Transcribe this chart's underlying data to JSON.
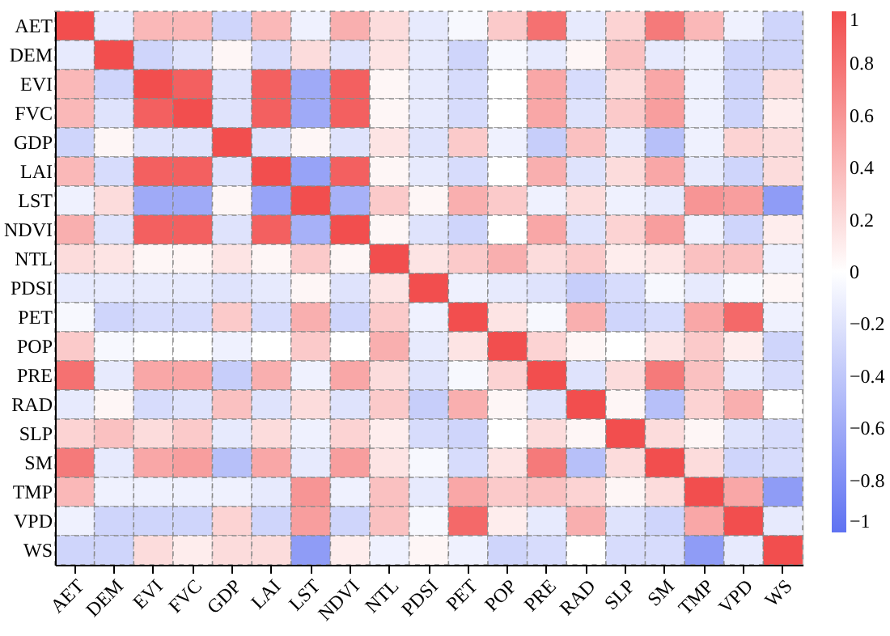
{
  "chart_data": {
    "type": "heatmap",
    "categories": [
      "AET",
      "DEM",
      "EVI",
      "FVC",
      "GDP",
      "LAI",
      "LST",
      "NDVI",
      "NTL",
      "PDSI",
      "PET",
      "POP",
      "PRE",
      "RAD",
      "SLP",
      "SM",
      "TMP",
      "VPD",
      "WS"
    ],
    "y_categories": [
      "AET",
      "DEM",
      "EVI",
      "FVC",
      "GDP",
      "LAI",
      "LST",
      "NDVI",
      "NTL",
      "PDSI",
      "PET",
      "POP",
      "PRE",
      "RAD",
      "SLP",
      "SM",
      "TMP",
      "VPD",
      "WS"
    ],
    "cells": [
      [
        1,
        -0.15,
        0.4,
        0.4,
        -0.3,
        0.4,
        -0.1,
        0.45,
        0.2,
        -0.15,
        -0.05,
        0.3,
        0.8,
        -0.15,
        0.25,
        0.75,
        0.4,
        -0.1,
        -0.3
      ],
      [
        -0.15,
        1,
        -0.3,
        -0.2,
        0.05,
        -0.25,
        0.2,
        -0.2,
        0.15,
        -0.15,
        -0.3,
        -0.05,
        -0.15,
        0.05,
        0.35,
        -0.15,
        -0.1,
        -0.3,
        -0.3
      ],
      [
        0.4,
        -0.3,
        1,
        0.9,
        -0.2,
        0.9,
        -0.6,
        0.9,
        0.05,
        -0.15,
        -0.25,
        0,
        0.5,
        -0.25,
        0.2,
        0.5,
        -0.1,
        -0.3,
        0.2
      ],
      [
        0.4,
        -0.2,
        0.9,
        1,
        -0.2,
        0.9,
        -0.6,
        0.9,
        0.05,
        -0.15,
        -0.25,
        0,
        0.5,
        -0.2,
        0.3,
        0.55,
        -0.1,
        -0.3,
        0.1
      ],
      [
        -0.3,
        0.05,
        -0.2,
        -0.2,
        1,
        -0.2,
        0.05,
        -0.2,
        0.15,
        -0.2,
        0.3,
        -0.1,
        -0.35,
        0.35,
        -0.15,
        -0.45,
        -0.1,
        0.25,
        0.2
      ],
      [
        0.4,
        -0.25,
        0.9,
        0.9,
        -0.2,
        1,
        -0.65,
        0.9,
        0.05,
        -0.15,
        -0.25,
        0,
        0.45,
        -0.2,
        0.2,
        0.5,
        -0.15,
        -0.3,
        0.2
      ],
      [
        -0.1,
        0.2,
        -0.6,
        -0.6,
        0.05,
        -0.65,
        1,
        -0.55,
        0.3,
        0.05,
        0.45,
        0.3,
        -0.1,
        0.2,
        -0.1,
        -0.15,
        0.6,
        0.55,
        -0.7
      ],
      [
        0.45,
        -0.2,
        0.9,
        0.9,
        -0.2,
        0.9,
        -0.55,
        1,
        0.05,
        -0.2,
        -0.3,
        0,
        0.5,
        -0.2,
        0.25,
        0.55,
        -0.1,
        -0.3,
        0.1
      ],
      [
        0.2,
        0.15,
        0.05,
        0.05,
        0.15,
        0.05,
        0.3,
        0.05,
        1,
        0.15,
        0.3,
        0.45,
        0.2,
        0.3,
        0.1,
        0.15,
        0.35,
        0.35,
        -0.1
      ],
      [
        -0.15,
        -0.15,
        -0.15,
        -0.15,
        -0.2,
        -0.15,
        0.05,
        -0.2,
        0.15,
        1,
        -0.1,
        -0.15,
        -0.2,
        -0.35,
        -0.25,
        -0.05,
        -0.15,
        -0.05,
        0.05
      ],
      [
        -0.05,
        -0.3,
        -0.25,
        -0.25,
        0.3,
        -0.25,
        0.45,
        -0.3,
        0.3,
        -0.1,
        1,
        0.15,
        -0.05,
        0.45,
        -0.3,
        -0.25,
        0.5,
        0.85,
        -0.1
      ],
      [
        0.3,
        -0.05,
        0,
        0,
        -0.1,
        0,
        0.3,
        0,
        0.45,
        -0.15,
        0.15,
        1,
        0.25,
        0.05,
        0,
        0.15,
        0.3,
        0.1,
        -0.3
      ],
      [
        0.8,
        -0.15,
        0.5,
        0.5,
        -0.35,
        0.45,
        -0.1,
        0.5,
        0.2,
        -0.2,
        -0.05,
        0.25,
        1,
        -0.2,
        0.2,
        0.75,
        0.35,
        -0.15,
        -0.25
      ],
      [
        -0.15,
        0.05,
        -0.25,
        -0.2,
        0.35,
        -0.2,
        0.2,
        -0.2,
        0.3,
        -0.35,
        0.45,
        0.05,
        -0.2,
        1,
        0.05,
        -0.45,
        0.25,
        0.45,
        0
      ],
      [
        0.25,
        0.35,
        0.2,
        0.3,
        -0.15,
        0.2,
        -0.1,
        0.25,
        0.1,
        -0.25,
        -0.3,
        0,
        0.2,
        0.05,
        1,
        0.2,
        0.05,
        -0.2,
        -0.25
      ],
      [
        0.75,
        -0.15,
        0.5,
        0.55,
        -0.45,
        0.5,
        -0.15,
        0.55,
        0.15,
        -0.05,
        -0.25,
        0.15,
        0.75,
        -0.45,
        0.2,
        1,
        0.2,
        -0.3,
        -0.25
      ],
      [
        0.4,
        -0.1,
        -0.1,
        -0.1,
        -0.1,
        -0.15,
        0.6,
        -0.1,
        0.35,
        -0.15,
        0.5,
        0.3,
        0.35,
        0.25,
        0.05,
        0.2,
        1,
        0.5,
        -0.7
      ],
      [
        -0.1,
        -0.3,
        -0.3,
        -0.3,
        0.25,
        -0.3,
        0.55,
        -0.3,
        0.35,
        -0.05,
        0.85,
        0.1,
        -0.15,
        0.45,
        -0.2,
        -0.3,
        0.5,
        1,
        -0.15
      ],
      [
        -0.3,
        -0.3,
        0.2,
        0.1,
        0.2,
        0.2,
        -0.7,
        0.1,
        -0.1,
        0.05,
        -0.1,
        -0.3,
        -0.25,
        0,
        -0.25,
        -0.25,
        -0.7,
        -0.15,
        1
      ]
    ],
    "clim": [
      -1,
      1
    ],
    "cticks": [
      -1,
      -0.8,
      -0.6,
      -0.4,
      -0.2,
      0,
      0.2,
      0.4,
      0.6,
      0.8,
      1
    ]
  }
}
